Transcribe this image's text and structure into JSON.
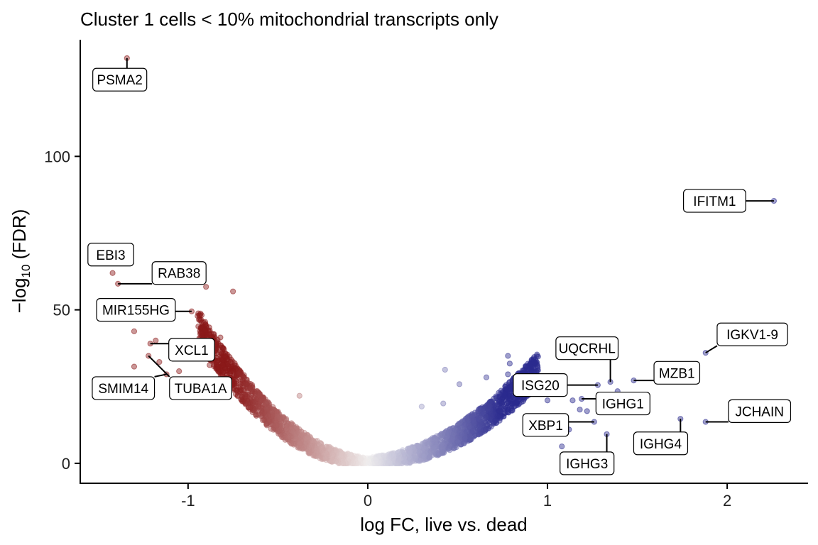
{
  "chart_data": {
    "type": "scatter",
    "title": "Cluster 1 cells < 10% mitochondrial transcripts only",
    "xlabel": "log FC, live vs. dead",
    "ylabel_main": "−log",
    "ylabel_sub": "10",
    "ylabel_tail": " (FDR)",
    "xlim": [
      -1.6,
      2.45
    ],
    "ylim": [
      -6.5,
      138
    ],
    "xticks": [
      -1,
      0,
      1,
      2
    ],
    "xtick_labels": [
      "-1",
      "0",
      "1",
      "2"
    ],
    "yticks": [
      0,
      50,
      100
    ],
    "ytick_labels": [
      "0",
      "50",
      "100"
    ],
    "colors": {
      "negative": "#8b1a1a",
      "positive": "#2b2b8f",
      "neutral": "#f0eeee"
    },
    "labeled_genes": [
      {
        "gene": "PSMA2",
        "x": -1.34,
        "y": 132,
        "label_x": -1.38,
        "label_y": 125
      },
      {
        "gene": "EBI3",
        "x": -1.42,
        "y": 62,
        "label_x": -1.43,
        "label_y": 68
      },
      {
        "gene": "RAB38",
        "x": -1.39,
        "y": 58.5,
        "label_x": -1.05,
        "label_y": 62
      },
      {
        "gene": "MIR155HG",
        "x": -0.98,
        "y": 49.5,
        "label_x": -1.29,
        "label_y": 50
      },
      {
        "gene": "XCL1",
        "x": -1.21,
        "y": 39,
        "label_x": -0.98,
        "label_y": 37
      },
      {
        "gene": "TUBA1A",
        "x": -1.22,
        "y": 35,
        "label_x": -0.93,
        "label_y": 24.5
      },
      {
        "gene": "SMIM14",
        "x": -1.12,
        "y": 29,
        "label_x": -1.36,
        "label_y": 24.5
      },
      {
        "gene": "IFITM1",
        "x": 2.26,
        "y": 85.5,
        "label_x": 1.93,
        "label_y": 85.5
      },
      {
        "gene": "IGKV1-9",
        "x": 1.88,
        "y": 36,
        "label_x": 2.14,
        "label_y": 42
      },
      {
        "gene": "UQCRHL",
        "x": 1.35,
        "y": 26.5,
        "label_x": 1.22,
        "label_y": 37.5
      },
      {
        "gene": "MZB1",
        "x": 1.48,
        "y": 27,
        "label_x": 1.72,
        "label_y": 29.5
      },
      {
        "gene": "ISG20",
        "x": 1.28,
        "y": 25.5,
        "label_x": 0.96,
        "label_y": 25.5
      },
      {
        "gene": "IGHG1",
        "x": 1.19,
        "y": 21,
        "label_x": 1.42,
        "label_y": 19.5
      },
      {
        "gene": "JCHAIN",
        "x": 1.88,
        "y": 13.5,
        "label_x": 2.18,
        "label_y": 17
      },
      {
        "gene": "XBP1",
        "x": 1.26,
        "y": 13.5,
        "label_x": 0.99,
        "label_y": 12.5
      },
      {
        "gene": "IGHG4",
        "x": 1.74,
        "y": 14.5,
        "label_x": 1.63,
        "label_y": 6.5
      },
      {
        "gene": "IGHG3",
        "x": 1.33,
        "y": 9.5,
        "label_x": 1.22,
        "label_y": 0
      }
    ],
    "highlight_points": [
      {
        "x": -1.3,
        "y": 43
      },
      {
        "x": -0.82,
        "y": 41
      },
      {
        "x": -0.9,
        "y": 57.5
      },
      {
        "x": -0.75,
        "y": 56
      },
      {
        "x": -1.18,
        "y": 40
      },
      {
        "x": -0.88,
        "y": 32
      },
      {
        "x": -1.05,
        "y": 30
      },
      {
        "x": -1.3,
        "y": 31.5
      },
      {
        "x": -1.16,
        "y": 33
      },
      {
        "x": -1.2,
        "y": 23
      },
      {
        "x": -0.38,
        "y": 22
      },
      {
        "x": -0.93,
        "y": 22
      },
      {
        "x": 0.78,
        "y": 35
      },
      {
        "x": 0.79,
        "y": 32.5
      },
      {
        "x": 0.78,
        "y": 29
      },
      {
        "x": 0.43,
        "y": 30.5
      },
      {
        "x": 0.66,
        "y": 28
      },
      {
        "x": 0.77,
        "y": 25.5
      },
      {
        "x": 0.51,
        "y": 25.8
      },
      {
        "x": 0.87,
        "y": 30.5
      },
      {
        "x": 1.39,
        "y": 23.5
      },
      {
        "x": 1.14,
        "y": 20.5
      },
      {
        "x": 1.3,
        "y": 18.5
      },
      {
        "x": 1.0,
        "y": 20.5
      },
      {
        "x": 0.8,
        "y": 18
      },
      {
        "x": 0.3,
        "y": 18.5
      },
      {
        "x": 0.42,
        "y": 19.5
      },
      {
        "x": 1.18,
        "y": 17.5
      },
      {
        "x": 1.22,
        "y": 17
      },
      {
        "x": 1.08,
        "y": 5.5
      },
      {
        "x": 1.12,
        "y": 11
      },
      {
        "x": 1.03,
        "y": 13
      }
    ],
    "grid": false,
    "legend": "none"
  }
}
